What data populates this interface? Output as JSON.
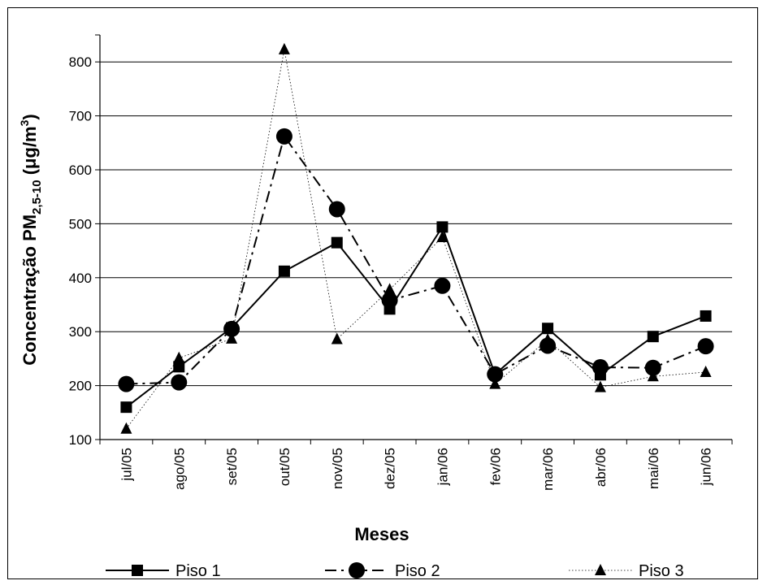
{
  "chart_data": {
    "type": "line",
    "xlabel": "Meses",
    "ylabel_main": "Concentração PM",
    "ylabel_sub": "2,5-10",
    "ylabel_unit_open": " (μg/m",
    "ylabel_unit_sup": "3",
    "ylabel_unit_close": ")",
    "ylim": [
      100,
      850
    ],
    "yticks": [
      100,
      200,
      300,
      400,
      500,
      600,
      700,
      800
    ],
    "grid": true,
    "legend": "bottom",
    "categories": [
      "jul/05",
      "ago/05",
      "set/05",
      "out/05",
      "nov/05",
      "dez/05",
      "jan/06",
      "fev/06",
      "mar/06",
      "abr/06",
      "mai/06",
      "jun/06"
    ],
    "series": [
      {
        "name": "Piso 1",
        "marker": "square",
        "line": "solid",
        "values": [
          160,
          235,
          307,
          412,
          465,
          342,
          494,
          221,
          306,
          220,
          291,
          329
        ]
      },
      {
        "name": "Piso 2",
        "marker": "circle",
        "line": "dashdot",
        "values": [
          203,
          206,
          305,
          662,
          527,
          358,
          385,
          221,
          274,
          234,
          233,
          273
        ]
      },
      {
        "name": "Piso 3",
        "marker": "triangle",
        "line": "dotted",
        "values": [
          120,
          251,
          287,
          823,
          286,
          378,
          475,
          203,
          285,
          197,
          217,
          225
        ]
      }
    ]
  }
}
